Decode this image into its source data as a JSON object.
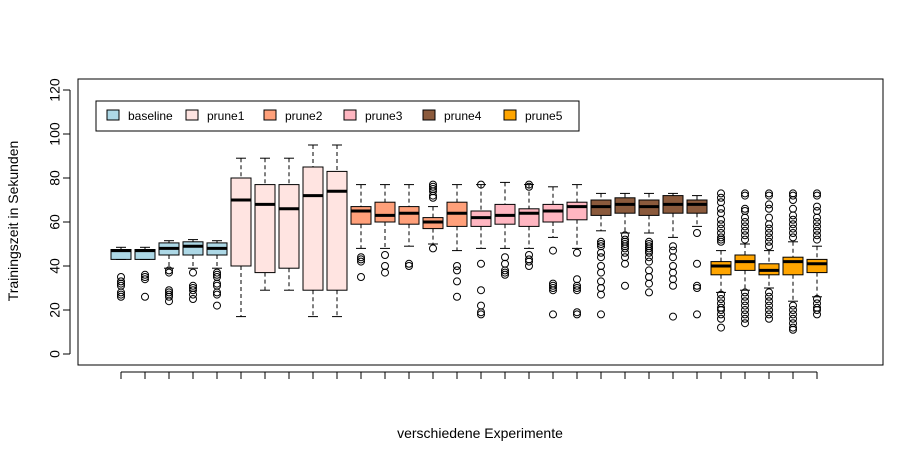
{
  "chart_data": {
    "type": "boxplot",
    "title": "",
    "xlabel": "verschiedene Experimente",
    "ylabel": "Trainingszeit in Sekunden",
    "ylim": [
      0,
      120
    ],
    "yticks": [
      0,
      20,
      40,
      60,
      80,
      100,
      120
    ],
    "grid": false,
    "legend_position": "top-left",
    "groups": [
      {
        "name": "baseline",
        "color": "#add8e6"
      },
      {
        "name": "prune1",
        "color": "#ffe4e1"
      },
      {
        "name": "prune2",
        "color": "#ffa07a"
      },
      {
        "name": "prune3",
        "color": "#ffb6c1"
      },
      {
        "name": "prune4",
        "color": "#8b5a3c"
      },
      {
        "name": "prune5",
        "color": "#ffa500"
      }
    ],
    "boxes": [
      {
        "group": 0,
        "lw": 43,
        "q1": 43,
        "median": 47,
        "q3": 47.5,
        "uw": 48.5,
        "outliers": [
          35,
          33,
          32,
          31,
          28,
          27,
          26
        ]
      },
      {
        "group": 0,
        "lw": 43,
        "q1": 43,
        "median": 47,
        "q3": 47.5,
        "uw": 48.5,
        "outliers": [
          36,
          35,
          34,
          26
        ]
      },
      {
        "group": 0,
        "lw": 39,
        "q1": 45,
        "median": 48,
        "q3": 50.5,
        "uw": 51.5,
        "outliers": [
          38,
          37,
          29,
          28,
          27,
          26,
          24
        ]
      },
      {
        "group": 0,
        "lw": 39,
        "q1": 45,
        "median": 49,
        "q3": 51,
        "uw": 52,
        "outliers": [
          37,
          31,
          30,
          29,
          27,
          25
        ]
      },
      {
        "group": 0,
        "lw": 39,
        "q1": 45,
        "median": 48,
        "q3": 50.5,
        "uw": 51.5,
        "outliers": [
          37,
          36,
          35,
          32,
          31,
          28,
          27,
          22
        ]
      },
      {
        "group": 1,
        "lw": 17,
        "q1": 40,
        "median": 70,
        "q3": 80,
        "uw": 89,
        "outliers": []
      },
      {
        "group": 1,
        "lw": 29,
        "q1": 37,
        "median": 68,
        "q3": 77,
        "uw": 89,
        "outliers": []
      },
      {
        "group": 1,
        "lw": 29,
        "q1": 39,
        "median": 66,
        "q3": 77,
        "uw": 89,
        "outliers": []
      },
      {
        "group": 1,
        "lw": 17,
        "q1": 29,
        "median": 72,
        "q3": 85,
        "uw": 95,
        "outliers": []
      },
      {
        "group": 1,
        "lw": 17,
        "q1": 29,
        "median": 74,
        "q3": 83,
        "uw": 95,
        "outliers": []
      },
      {
        "group": 2,
        "lw": 48,
        "q1": 59,
        "median": 65,
        "q3": 67,
        "uw": 77,
        "outliers": [
          44,
          43,
          42,
          35
        ]
      },
      {
        "group": 2,
        "lw": 48,
        "q1": 60,
        "median": 63,
        "q3": 69,
        "uw": 77,
        "outliers": [
          45,
          40,
          37
        ]
      },
      {
        "group": 2,
        "lw": 49,
        "q1": 59,
        "median": 64,
        "q3": 67,
        "uw": 77,
        "outliers": [
          41,
          40
        ]
      },
      {
        "group": 2,
        "lw": 50,
        "q1": 57,
        "median": 60,
        "q3": 62,
        "uw": 67,
        "outliers": [
          77,
          76,
          75,
          74,
          72,
          71,
          48
        ]
      },
      {
        "group": 2,
        "lw": 47,
        "q1": 58,
        "median": 64,
        "q3": 69,
        "uw": 77,
        "outliers": [
          40,
          38,
          33,
          26
        ]
      },
      {
        "group": 3,
        "lw": 48,
        "q1": 58,
        "median": 62,
        "q3": 65,
        "uw": 77,
        "outliers": [
          77,
          41,
          29,
          22,
          19,
          18
        ]
      },
      {
        "group": 3,
        "lw": 48,
        "q1": 59,
        "median": 63,
        "q3": 68,
        "uw": 78,
        "outliers": [
          44,
          41,
          38,
          37,
          36
        ]
      },
      {
        "group": 3,
        "lw": 48,
        "q1": 58,
        "median": 64,
        "q3": 66,
        "uw": 77,
        "outliers": [
          77,
          76,
          45,
          43,
          42,
          40
        ]
      },
      {
        "group": 3,
        "lw": 53,
        "q1": 60,
        "median": 65,
        "q3": 68,
        "uw": 76,
        "outliers": [
          47,
          32,
          31,
          30,
          29,
          18
        ]
      },
      {
        "group": 3,
        "lw": 48,
        "q1": 61,
        "median": 67,
        "q3": 69,
        "uw": 77,
        "outliers": [
          46,
          34,
          31,
          30,
          29,
          19,
          18
        ]
      },
      {
        "group": 4,
        "lw": 56,
        "q1": 63,
        "median": 67,
        "q3": 70,
        "uw": 73,
        "outliers": [
          51,
          50,
          49,
          46,
          44,
          40,
          37,
          33,
          30,
          27,
          18
        ]
      },
      {
        "group": 4,
        "lw": 55,
        "q1": 64,
        "median": 68,
        "q3": 71,
        "uw": 73,
        "outliers": [
          54,
          52,
          51,
          50,
          49,
          48,
          46,
          44,
          41,
          31
        ]
      },
      {
        "group": 4,
        "lw": 55,
        "q1": 63,
        "median": 67,
        "q3": 70,
        "uw": 73,
        "outliers": [
          51,
          50,
          49,
          48,
          47,
          46,
          44,
          42,
          38,
          35,
          32,
          28
        ]
      },
      {
        "group": 4,
        "lw": 53,
        "q1": 64,
        "median": 68,
        "q3": 72,
        "uw": 73,
        "outliers": [
          49,
          47,
          44,
          40,
          37,
          34,
          31,
          17
        ]
      },
      {
        "group": 4,
        "lw": 58,
        "q1": 64,
        "median": 68,
        "q3": 70,
        "uw": 72,
        "outliers": [
          55,
          41,
          31,
          30,
          18
        ]
      },
      {
        "group": 5,
        "lw": 28,
        "q1": 36,
        "median": 40,
        "q3": 42,
        "uw": 47,
        "outliers": [
          73,
          71,
          69,
          66,
          64,
          61,
          59,
          57,
          55,
          53,
          52,
          51,
          27,
          25,
          23,
          21,
          20,
          18,
          16,
          12
        ]
      },
      {
        "group": 5,
        "lw": 29,
        "q1": 38,
        "median": 42,
        "q3": 45,
        "uw": 50,
        "outliers": [
          73,
          72,
          66,
          65,
          62,
          60,
          58,
          56,
          54,
          52,
          28,
          26,
          24,
          22,
          20,
          18,
          16,
          14
        ]
      },
      {
        "group": 5,
        "lw": 30,
        "q1": 36,
        "median": 38,
        "q3": 41,
        "uw": 47,
        "outliers": [
          73,
          72,
          68,
          66,
          62,
          59,
          57,
          55,
          53,
          51,
          49,
          28,
          26,
          24,
          22,
          20,
          18,
          16
        ]
      },
      {
        "group": 5,
        "lw": 24,
        "q1": 36,
        "median": 42,
        "q3": 44,
        "uw": 51,
        "outliers": [
          73,
          72,
          70,
          66,
          63,
          61,
          59,
          57,
          55,
          53,
          22,
          20,
          18,
          16,
          14,
          12,
          11
        ]
      },
      {
        "group": 5,
        "lw": 26,
        "q1": 37,
        "median": 41,
        "q3": 43,
        "uw": 49,
        "outliers": [
          73,
          72,
          67,
          65,
          62,
          60,
          58,
          56,
          54,
          52,
          25,
          23,
          21,
          20,
          18
        ]
      }
    ]
  }
}
